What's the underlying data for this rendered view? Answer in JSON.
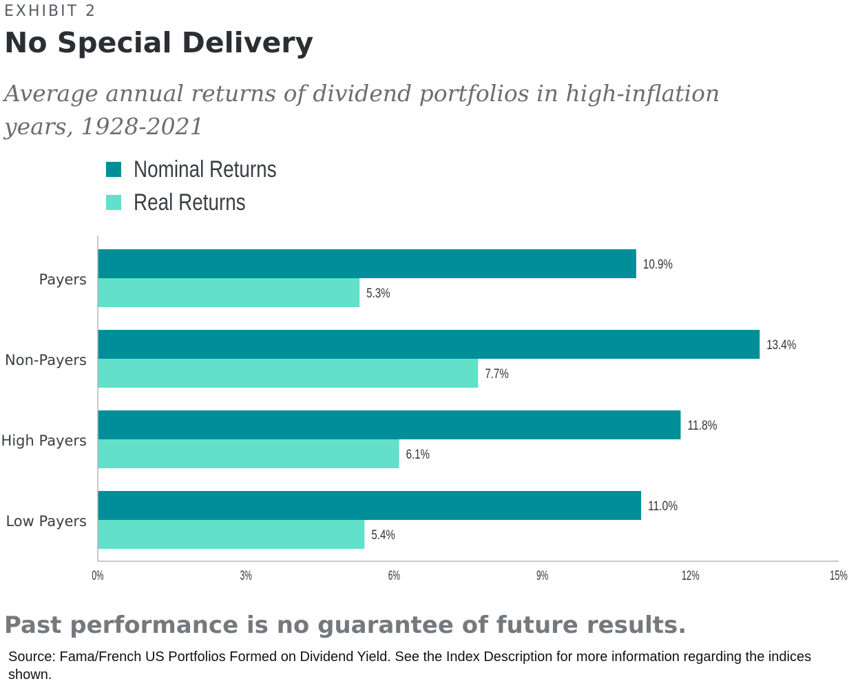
{
  "header": {
    "exhibit": "EXHIBIT 2",
    "title": "No Special Delivery",
    "subtitle": "Average annual returns of dividend portfolios in high-inflation years, 1928-2021"
  },
  "legend": [
    {
      "label": "Nominal Returns",
      "color": "#008f99"
    },
    {
      "label": "Real Returns",
      "color": "#62e0ca"
    }
  ],
  "footer": {
    "disclaimer": "Past performance is no guarantee of future results.",
    "source": "Source: Fama/French US Portfolios Formed on Dividend Yield. See the Index Description for more information regarding the indices shown."
  },
  "chart_data": {
    "type": "bar",
    "orientation": "horizontal",
    "title": "No Special Delivery",
    "subtitle": "Average annual returns of dividend portfolios in high-inflation years, 1928-2021",
    "categories": [
      "Payers",
      "Non-Payers",
      "High Payers",
      "Low Payers"
    ],
    "series": [
      {
        "name": "Nominal Returns",
        "color": "#008f99",
        "values": [
          10.9,
          13.4,
          11.8,
          11.0
        ],
        "labels": [
          "10.9%",
          "13.4%",
          "11.8%",
          "11.0%"
        ]
      },
      {
        "name": "Real Returns",
        "color": "#62e0ca",
        "values": [
          5.3,
          7.7,
          6.1,
          5.4
        ],
        "labels": [
          "5.3%",
          "7.7%",
          "6.1%",
          "5.4%"
        ]
      }
    ],
    "xlim": [
      0,
      15
    ],
    "xticks": [
      0,
      3,
      6,
      9,
      12,
      15
    ],
    "xtick_labels": [
      "0%",
      "3%",
      "6%",
      "9%",
      "12%",
      "15%"
    ],
    "grid": false,
    "legend_position": "top-left"
  }
}
